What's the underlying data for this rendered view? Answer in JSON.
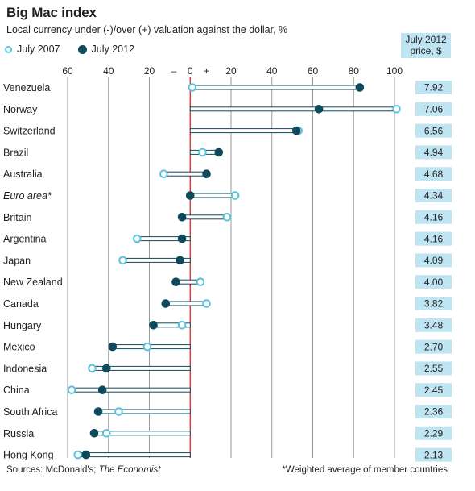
{
  "title": "Big Mac index",
  "subtitle": "Local currency under (-)/over (+) valuation against the dollar, %",
  "legend": {
    "open_label": "July 2007",
    "filled_label": "July 2012"
  },
  "price_header": {
    "line1": "July 2012",
    "line2": "price, $"
  },
  "footer": {
    "sources_prefix": "Sources: McDonald's;",
    "sources_italic": "The Economist",
    "note": "*Weighted average of member countries"
  },
  "colors": {
    "open_marker": "#5bc2dd",
    "filled_marker": "#0e4a5c",
    "zero_line": "#e3120b",
    "grid": "#9a9a9a",
    "price_box": "#bfe4f2"
  },
  "chart_data": {
    "type": "dot-range",
    "title": "Big Mac index",
    "subtitle": "Local currency under (-)/over (+) valuation against the dollar, %",
    "xlim": [
      -60,
      100
    ],
    "x_ticks": [
      {
        "value": -60,
        "label": "60"
      },
      {
        "value": -40,
        "label": "40"
      },
      {
        "value": -20,
        "label": "20"
      },
      {
        "value": -8,
        "label": "–"
      },
      {
        "value": 0,
        "label": "0"
      },
      {
        "value": 8,
        "label": "+"
      },
      {
        "value": 20,
        "label": "20"
      },
      {
        "value": 40,
        "label": "40"
      },
      {
        "value": 60,
        "label": "60"
      },
      {
        "value": 80,
        "label": "80"
      },
      {
        "value": 100,
        "label": "100"
      }
    ],
    "gridlines": [
      -60,
      -40,
      -20,
      20,
      40,
      60,
      80,
      100
    ],
    "series": [
      {
        "name": "July 2007",
        "marker": "open"
      },
      {
        "name": "July 2012",
        "marker": "filled"
      }
    ],
    "rows": [
      {
        "country": "Venezuela",
        "y2007": 1,
        "y2012": 83,
        "price": "7.92",
        "italic": false
      },
      {
        "country": "Norway",
        "y2007": 101,
        "y2012": 63,
        "price": "7.06",
        "italic": false
      },
      {
        "country": "Switzerland",
        "y2007": 53,
        "y2012": 52,
        "price": "6.56",
        "italic": false
      },
      {
        "country": "Brazil",
        "y2007": 6,
        "y2012": 14,
        "price": "4.94",
        "italic": false
      },
      {
        "country": "Australia",
        "y2007": -13,
        "y2012": 8,
        "price": "4.68",
        "italic": false
      },
      {
        "country": "Euro area*",
        "y2007": 22,
        "y2012": 0,
        "price": "4.34",
        "italic": true
      },
      {
        "country": "Britain",
        "y2007": 18,
        "y2012": -4,
        "price": "4.16",
        "italic": false
      },
      {
        "country": "Argentina",
        "y2007": -26,
        "y2012": -4,
        "price": "4.16",
        "italic": false
      },
      {
        "country": "Japan",
        "y2007": -33,
        "y2012": -5,
        "price": "4.09",
        "italic": false
      },
      {
        "country": "New Zealand",
        "y2007": 5,
        "y2012": -7,
        "price": "4.00",
        "italic": false
      },
      {
        "country": "Canada",
        "y2007": 8,
        "y2012": -12,
        "price": "3.82",
        "italic": false
      },
      {
        "country": "Hungary",
        "y2007": -4,
        "y2012": -18,
        "price": "3.48",
        "italic": false
      },
      {
        "country": "Mexico",
        "y2007": -21,
        "y2012": -38,
        "price": "2.70",
        "italic": false
      },
      {
        "country": "Indonesia",
        "y2007": -48,
        "y2012": -41,
        "price": "2.55",
        "italic": false
      },
      {
        "country": "China",
        "y2007": -58,
        "y2012": -43,
        "price": "2.45",
        "italic": false
      },
      {
        "country": "South Africa",
        "y2007": -35,
        "y2012": -45,
        "price": "2.36",
        "italic": false
      },
      {
        "country": "Russia",
        "y2007": -41,
        "y2012": -47,
        "price": "2.29",
        "italic": false
      },
      {
        "country": "Hong Kong",
        "y2007": -55,
        "y2012": -51,
        "price": "2.13",
        "italic": false
      }
    ]
  }
}
